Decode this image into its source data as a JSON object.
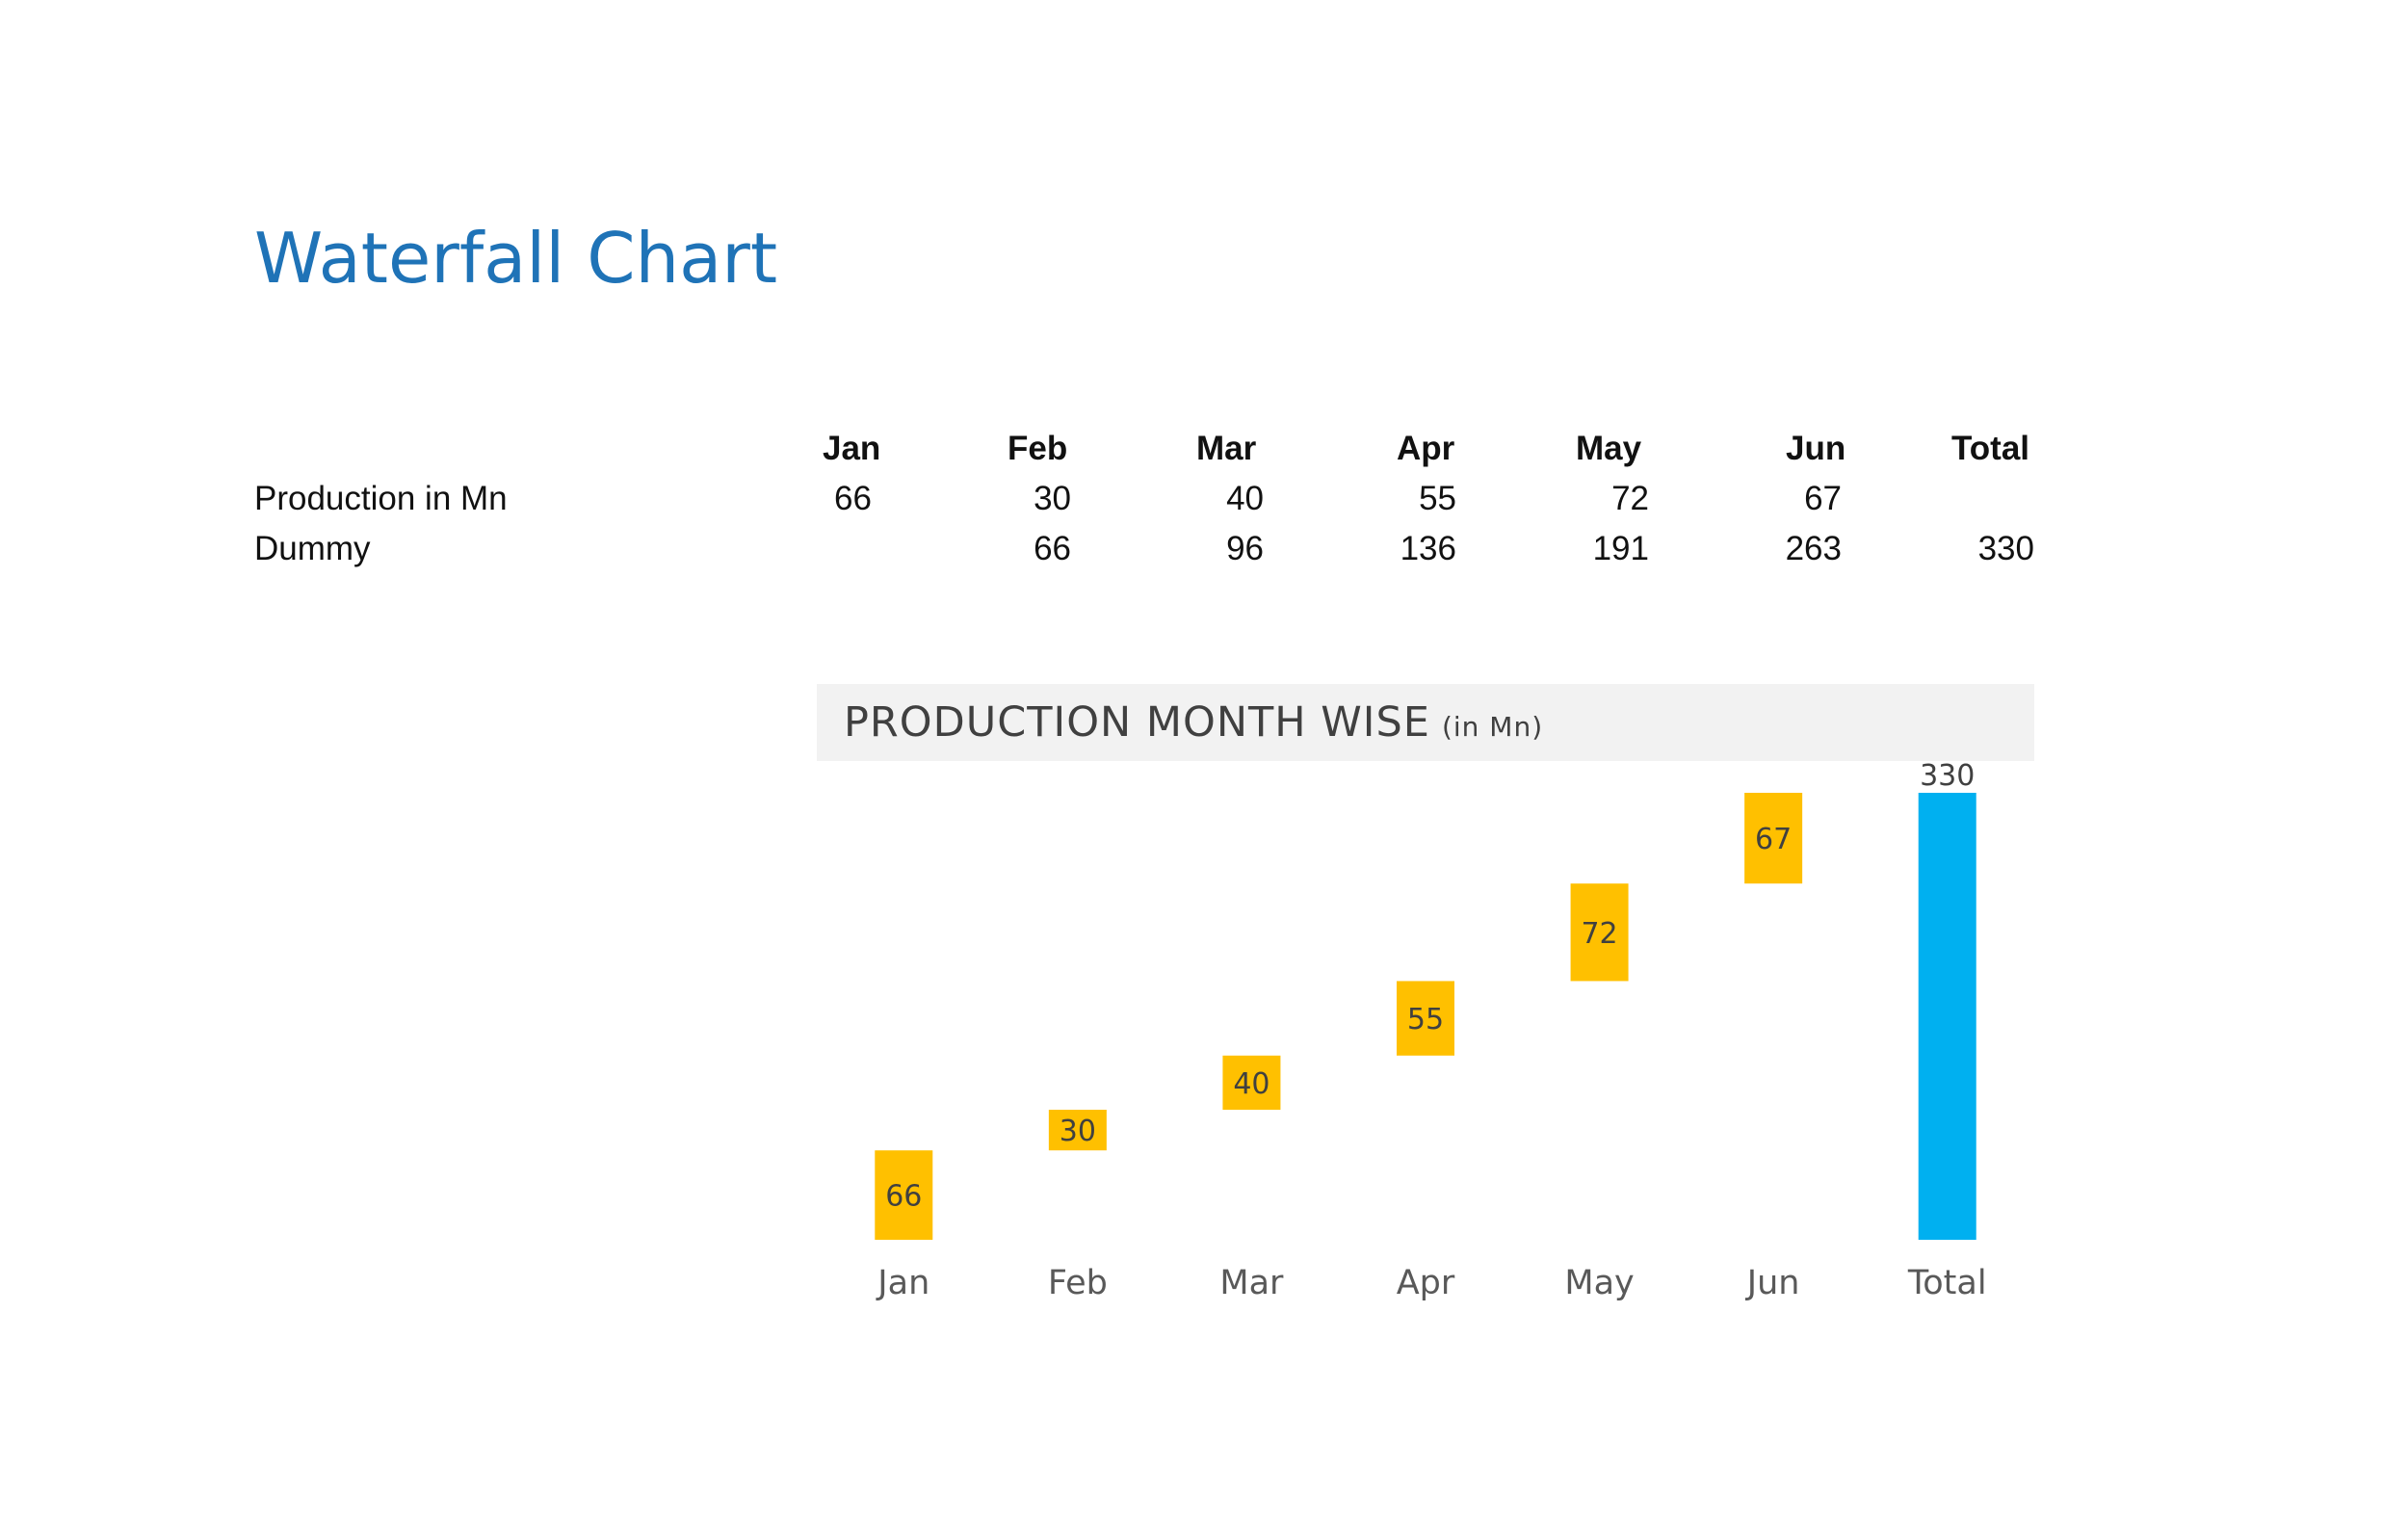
{
  "title": "Waterfall Chart",
  "table": {
    "columns": [
      "Jan",
      "Feb",
      "Mar",
      "Apr",
      "May",
      "Jun",
      "Total"
    ],
    "rows": [
      {
        "label": "Production in Mn",
        "values": [
          "66",
          "30",
          "40",
          "55",
          "72",
          "67",
          ""
        ]
      },
      {
        "label": "Dummy",
        "values": [
          "",
          "66",
          "96",
          "136",
          "191",
          "263",
          "330"
        ]
      }
    ]
  },
  "chart_data": {
    "type": "bar",
    "subtype": "waterfall",
    "title": "PRODUCTION MONTH WISE",
    "title_unit": "(in Mn)",
    "categories": [
      "Jan",
      "Feb",
      "Mar",
      "Apr",
      "May",
      "Jun",
      "Total"
    ],
    "series": [
      {
        "name": "Dummy",
        "values": [
          0,
          66,
          96,
          136,
          191,
          263,
          0
        ],
        "visible": false
      },
      {
        "name": "Production in Mn",
        "values": [
          66,
          30,
          40,
          55,
          72,
          67,
          0
        ],
        "color": "#ffc000"
      },
      {
        "name": "Total",
        "values": [
          0,
          0,
          0,
          0,
          0,
          0,
          330
        ],
        "color": "#00b0f0"
      }
    ],
    "data_labels": [
      "66",
      "30",
      "40",
      "55",
      "72",
      "67",
      "330"
    ],
    "ylim": [
      0,
      330
    ],
    "grid": false,
    "legend": "none",
    "title_bg_color": "#f2f2f2",
    "axis_label_color": "#595959"
  }
}
